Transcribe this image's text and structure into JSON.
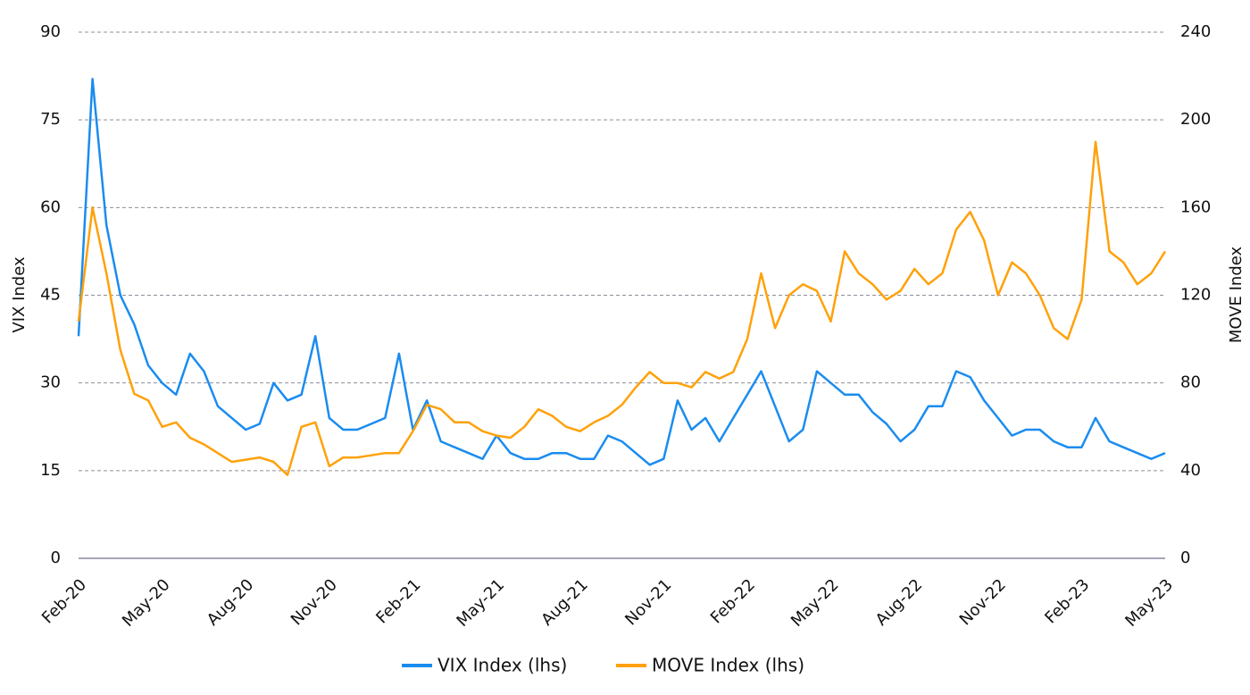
{
  "chart_data": {
    "type": "line",
    "y_label": "VIX Index",
    "y2_label": "MOVE Index",
    "categories": [
      "Feb-20",
      null,
      null,
      null,
      null,
      null,
      "May-20",
      null,
      null,
      null,
      null,
      null,
      "Aug-20",
      null,
      null,
      null,
      null,
      null,
      "Nov-20",
      null,
      null,
      null,
      null,
      null,
      "Feb-21",
      null,
      null,
      null,
      null,
      null,
      "May-21",
      null,
      null,
      null,
      null,
      null,
      "Aug-21",
      null,
      null,
      null,
      null,
      null,
      "Nov-21",
      null,
      null,
      null,
      null,
      null,
      "Feb-22",
      null,
      null,
      null,
      null,
      null,
      "May-22",
      null,
      null,
      null,
      null,
      null,
      "Aug-22",
      null,
      null,
      null,
      null,
      null,
      "Nov-22",
      null,
      null,
      null,
      null,
      null,
      "Feb-23",
      null,
      null,
      null,
      null,
      null,
      "May-23"
    ],
    "series": [
      {
        "name": "VIX Index (lhs)",
        "color": "#1a8cf0",
        "axis": "y",
        "values": [
          38,
          82,
          57,
          45,
          40,
          33,
          30,
          28,
          35,
          32,
          26,
          24,
          22,
          23,
          30,
          27,
          28,
          38,
          24,
          22,
          22,
          23,
          24,
          35,
          22,
          27,
          20,
          19,
          18,
          17,
          21,
          18,
          17,
          17,
          18,
          18,
          17,
          17,
          21,
          20,
          18,
          16,
          17,
          27,
          22,
          24,
          20,
          24,
          28,
          32,
          26,
          20,
          22,
          32,
          30,
          28,
          28,
          25,
          23,
          20,
          22,
          26,
          26,
          32,
          31,
          27,
          24,
          21,
          22,
          22,
          20,
          19,
          19,
          24,
          20,
          19,
          18,
          17,
          18
        ]
      },
      {
        "name": "MOVE Index (lhs)",
        "color": "#ffa10a",
        "axis": "y2",
        "values": [
          108,
          160,
          130,
          95,
          75,
          72,
          60,
          62,
          55,
          52,
          48,
          44,
          45,
          46,
          44,
          38,
          60,
          62,
          42,
          46,
          46,
          47,
          48,
          48,
          58,
          70,
          68,
          62,
          62,
          58,
          56,
          55,
          60,
          68,
          65,
          60,
          58,
          62,
          65,
          70,
          78,
          85,
          80,
          80,
          78,
          85,
          82,
          85,
          100,
          130,
          105,
          120,
          125,
          122,
          108,
          140,
          130,
          125,
          118,
          122,
          132,
          125,
          130,
          150,
          158,
          145,
          120,
          135,
          130,
          120,
          105,
          100,
          118,
          190,
          140,
          135,
          125,
          130,
          140
        ]
      }
    ],
    "ylim": [
      0,
      90
    ],
    "yticks": [
      0,
      15,
      30,
      45,
      60,
      75,
      90
    ],
    "y2lim": [
      0,
      240
    ],
    "y2ticks": [
      0,
      40,
      80,
      120,
      160,
      200,
      240
    ],
    "grid": true,
    "legend": "bottom"
  }
}
